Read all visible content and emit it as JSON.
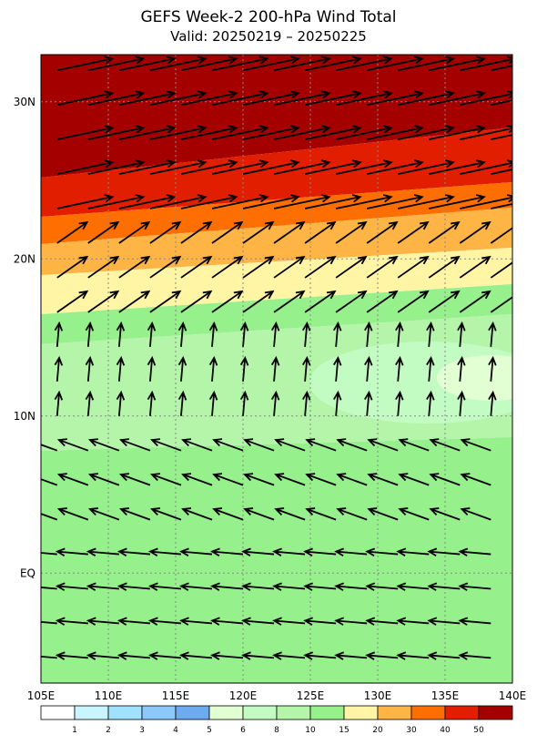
{
  "title": "GEFS Week-2 200-hPa Wind Total",
  "subtitle": "Valid: 20250219 – 20250225",
  "map": {
    "xlim": [
      105,
      140
    ],
    "ylim": [
      -7,
      33
    ],
    "lon_ticks": [
      {
        "value": 105,
        "label": "105E"
      },
      {
        "value": 110,
        "label": "110E"
      },
      {
        "value": 115,
        "label": "115E"
      },
      {
        "value": 120,
        "label": "120E"
      },
      {
        "value": 125,
        "label": "125E"
      },
      {
        "value": 130,
        "label": "130E"
      },
      {
        "value": 135,
        "label": "135E"
      },
      {
        "value": 140,
        "label": "140E"
      }
    ],
    "lat_ticks": [
      {
        "value": 30,
        "label": "30N"
      },
      {
        "value": 20,
        "label": "20N"
      },
      {
        "value": 10,
        "label": "10N"
      },
      {
        "value": 0,
        "label": "EQ"
      }
    ]
  },
  "colorbar": {
    "levels": [
      1,
      2,
      3,
      4,
      5,
      6,
      8,
      10,
      15,
      20,
      30,
      40,
      50
    ],
    "colors": [
      "#ffffff",
      "#c8f5ff",
      "#a0e1ff",
      "#8cc8fa",
      "#6eaaf0",
      "#e1ffd2",
      "#c3fcc3",
      "#b4f5aa",
      "#96f08c",
      "#fff5a5",
      "#ffb446",
      "#ff6e00",
      "#e11e00",
      "#a50000"
    ]
  }
}
